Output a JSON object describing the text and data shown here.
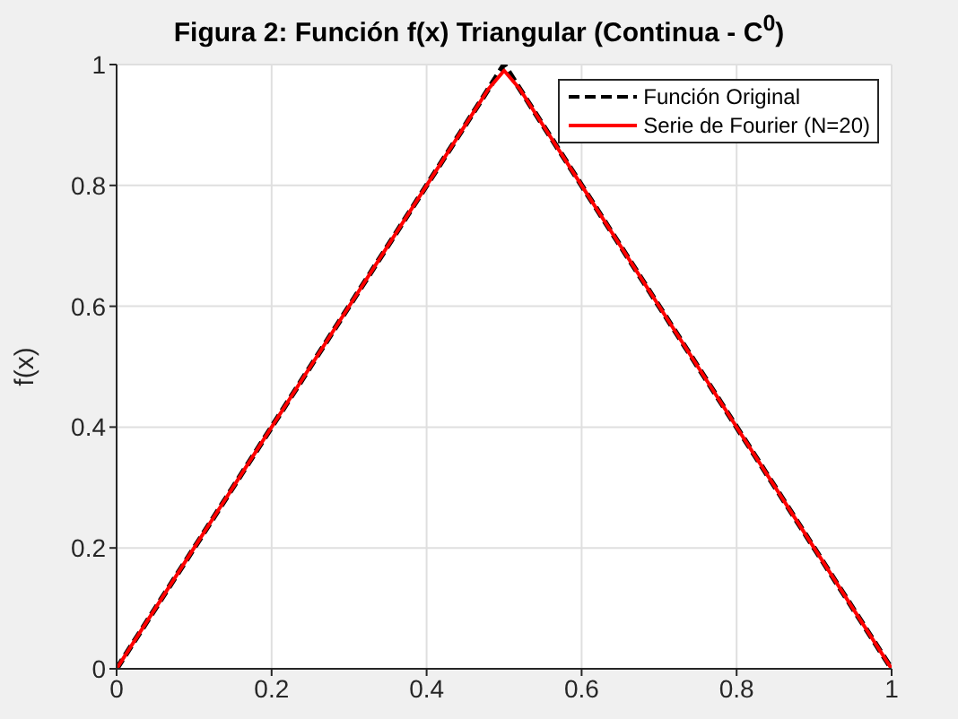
{
  "chart_data": {
    "type": "line",
    "title": "Figura 2: Función f(x) Triangular (Continua - C$^{0}$)",
    "ylabel": "f(x)",
    "series": [
      {
        "name": "Función Original",
        "color": "#000000",
        "line_style": "dashed",
        "x": [
          0,
          0.5,
          1
        ],
        "values": [
          0,
          1,
          0
        ]
      },
      {
        "name": "Serie de Fourier (N=20)",
        "color": "#ff0000",
        "line_style": "solid",
        "x": [
          0,
          0.1,
          0.25,
          0.4,
          0.48,
          0.5,
          0.52,
          0.6,
          0.75,
          0.9,
          1
        ],
        "values": [
          0,
          0.2,
          0.5,
          0.8,
          0.96,
          0.99,
          0.96,
          0.8,
          0.5,
          0.2,
          0
        ]
      }
    ],
    "xlim": [
      0,
      1
    ],
    "xticks": [
      0,
      0.2,
      0.4,
      0.6,
      0.8,
      1
    ],
    "ylim": [
      0,
      1
    ],
    "yticks": [
      0,
      0.2,
      0.4,
      0.6,
      0.8,
      1
    ],
    "grid": true,
    "legend": "top right",
    "marker": "none"
  }
}
